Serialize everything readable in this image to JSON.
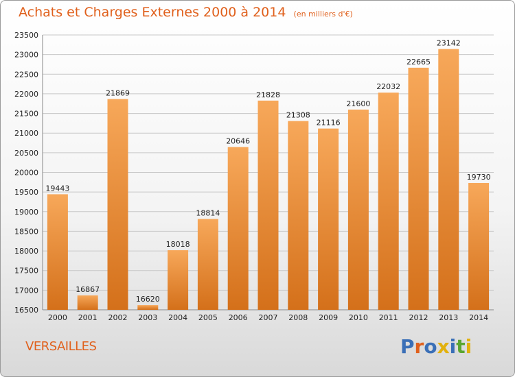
{
  "header": {
    "title": "Achats et Charges Externes 2000 à 2014",
    "unit": "(en milliers d'€)"
  },
  "footer": {
    "city": "VERSAILLES",
    "logo_text": "Proxiti",
    "logo_colors": [
      "#3a6fb7",
      "#e0601c",
      "#3a6fb7",
      "#e2b10e",
      "#3a6fb7",
      "#5aa630",
      "#e2b10e"
    ]
  },
  "colors": {
    "title": "#e0601c",
    "bar_top": "#f7a85a",
    "bar_bottom": "#d4701a",
    "grid": "#c8c8c8"
  },
  "chart_data": {
    "type": "bar",
    "title": "Achats et Charges Externes 2000 à 2014",
    "xlabel": "",
    "ylabel": "",
    "categories": [
      "2000",
      "2001",
      "2002",
      "2003",
      "2004",
      "2005",
      "2006",
      "2007",
      "2008",
      "2009",
      "2010",
      "2011",
      "2012",
      "2013",
      "2014"
    ],
    "values": [
      19443,
      16867,
      21869,
      16620,
      18018,
      18814,
      20646,
      21828,
      21308,
      21116,
      21600,
      22032,
      22665,
      23142,
      19730
    ],
    "ylim": [
      16500,
      23500
    ],
    "yticks": [
      16500,
      17000,
      17500,
      18000,
      18500,
      19000,
      19500,
      20000,
      20500,
      21000,
      21500,
      22000,
      22500,
      23000,
      23500
    ],
    "grid": true,
    "legend": "none"
  }
}
